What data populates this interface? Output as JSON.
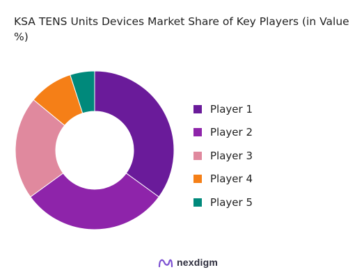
{
  "chart_data": {
    "type": "pie",
    "variant": "donut",
    "title": "KSA TENS Units Devices Market Share of Key Players (in Value %)",
    "categories": [
      "Player 1",
      "Player 2",
      "Player 3",
      "Player 4",
      "Player 5"
    ],
    "values": [
      35,
      30,
      21,
      9,
      5
    ],
    "colors": [
      "#6a1b9a",
      "#8e24aa",
      "#e0899e",
      "#f57f17",
      "#00897b"
    ],
    "legend_position": "right"
  },
  "brand": {
    "name": "nexdigm",
    "logo_icon": "nexdigm-logo-icon",
    "logo_color": "#7b4fd1"
  }
}
